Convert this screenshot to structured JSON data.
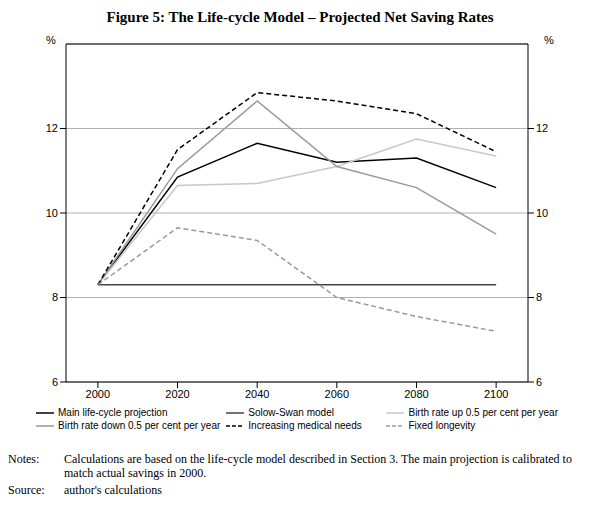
{
  "chart_data": {
    "type": "line",
    "title": "Figure 5: The Life-cycle Model – Projected Net Saving Rates",
    "y_label": "%",
    "y2_label": "%",
    "x": [
      2000,
      2020,
      2040,
      2060,
      2080,
      2100
    ],
    "xlim": [
      1992,
      2108
    ],
    "xticks": [
      2000,
      2020,
      2040,
      2060,
      2080,
      2100
    ],
    "ylim": [
      6,
      14
    ],
    "yticks": [
      6,
      8,
      10,
      12
    ],
    "y2lim": [
      6,
      14
    ],
    "y2ticks": [
      6,
      8,
      10,
      12
    ],
    "grid": true,
    "legend": "bottom",
    "series": [
      {
        "name": "Main life-cycle projection",
        "color": "#000000",
        "line_style": "solid",
        "values": [
          8.3,
          10.85,
          11.65,
          11.2,
          11.3,
          10.6
        ]
      },
      {
        "name": "Solow-Swan model",
        "color": "#444444",
        "line_style": "solid",
        "values": [
          8.3,
          8.3,
          8.3,
          8.3,
          8.3,
          8.3
        ]
      },
      {
        "name": "Birth rate up 0.5 per cent per year",
        "color": "#c8c8c8",
        "line_style": "solid",
        "values": [
          8.3,
          10.65,
          10.7,
          11.1,
          11.75,
          11.35
        ]
      },
      {
        "name": "Birth rate down 0.5 per cent per year",
        "color": "#999999",
        "line_style": "solid",
        "values": [
          8.3,
          11.05,
          12.65,
          11.1,
          10.6,
          9.5
        ]
      },
      {
        "name": "Increasing medical needs",
        "color": "#000000",
        "line_style": "dashed",
        "values": [
          8.3,
          11.5,
          12.85,
          12.65,
          12.35,
          11.45
        ]
      },
      {
        "name": "Fixed longevity",
        "color": "#999999",
        "line_style": "dashed",
        "values": [
          8.3,
          9.65,
          9.35,
          8.0,
          7.55,
          7.2
        ]
      }
    ],
    "notes": {
      "label": "Notes:",
      "text": "Calculations are based on the life-cycle model described in Section 3. The main projection is calibrated to match actual savings in 2000."
    },
    "source": {
      "label": "Source:",
      "text": "author's calculations"
    }
  }
}
